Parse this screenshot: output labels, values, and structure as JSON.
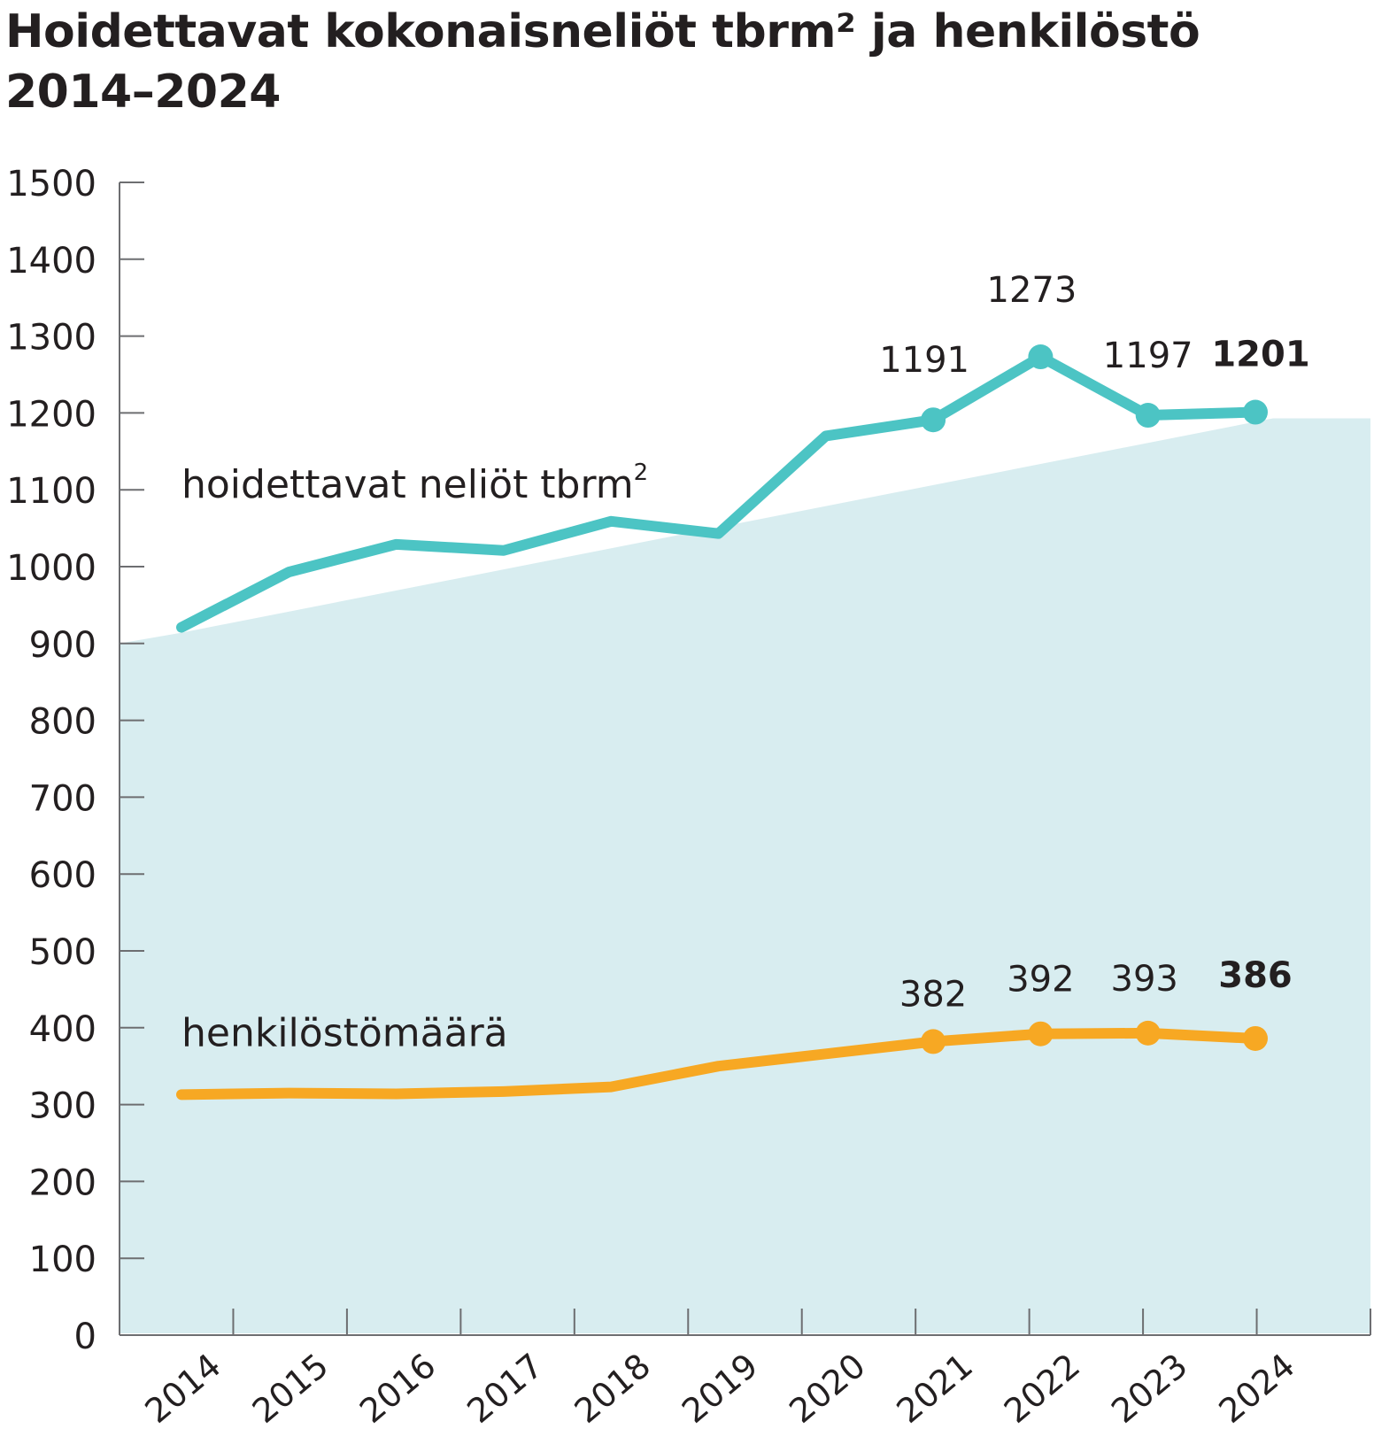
{
  "title": {
    "line1": "Hoidettavat kokonaisneliöt tbrm² ja henkilöstö",
    "line2": "2014–2024"
  },
  "colors": {
    "area": "#d8edf0",
    "area_series": "#4cc4c4",
    "staff_series": "#f7a823",
    "axis": "#6d6e71",
    "text": "#231f20"
  },
  "chart_data": {
    "type": "line",
    "title": "Hoidettavat kokonaisneliöt tbrm² ja henkilöstö 2014–2024",
    "categories": [
      "2014",
      "2015",
      "2016",
      "2017",
      "2018",
      "2019",
      "2020",
      "2021",
      "2022",
      "2023",
      "2024"
    ],
    "ylim": [
      0,
      1500
    ],
    "yticks": [
      "0",
      "100",
      "200",
      "300",
      "400",
      "500",
      "600",
      "700",
      "800",
      "900",
      "1000",
      "1100",
      "1200",
      "1300",
      "1400",
      "1500"
    ],
    "grid": false,
    "background_area": {
      "start": 900,
      "end": 1193
    },
    "series": [
      {
        "name": "hoidettavat neliöt tbrm",
        "name_sup": "2",
        "values": [
          921,
          993,
          1029,
          1021,
          1059,
          1043,
          1170,
          1191,
          1273,
          1197,
          1201
        ],
        "markers": [
          7,
          8,
          9,
          10
        ],
        "labels": [
          {
            "index": 7,
            "text": "1191",
            "bold": false
          },
          {
            "index": 8,
            "text": "1273",
            "bold": false
          },
          {
            "index": 9,
            "text": "1197",
            "bold": false
          },
          {
            "index": 10,
            "text": "1201",
            "bold": true
          }
        ]
      },
      {
        "name": "henkilöstömäärä",
        "name_sup": "",
        "values": [
          313,
          315,
          314,
          317,
          323,
          350,
          366,
          382,
          392,
          393,
          386
        ],
        "markers": [
          7,
          8,
          9,
          10
        ],
        "labels": [
          {
            "index": 7,
            "text": "382",
            "bold": false
          },
          {
            "index": 8,
            "text": "392",
            "bold": false
          },
          {
            "index": 9,
            "text": "393",
            "bold": false
          },
          {
            "index": 10,
            "text": "386",
            "bold": true
          }
        ]
      }
    ]
  }
}
